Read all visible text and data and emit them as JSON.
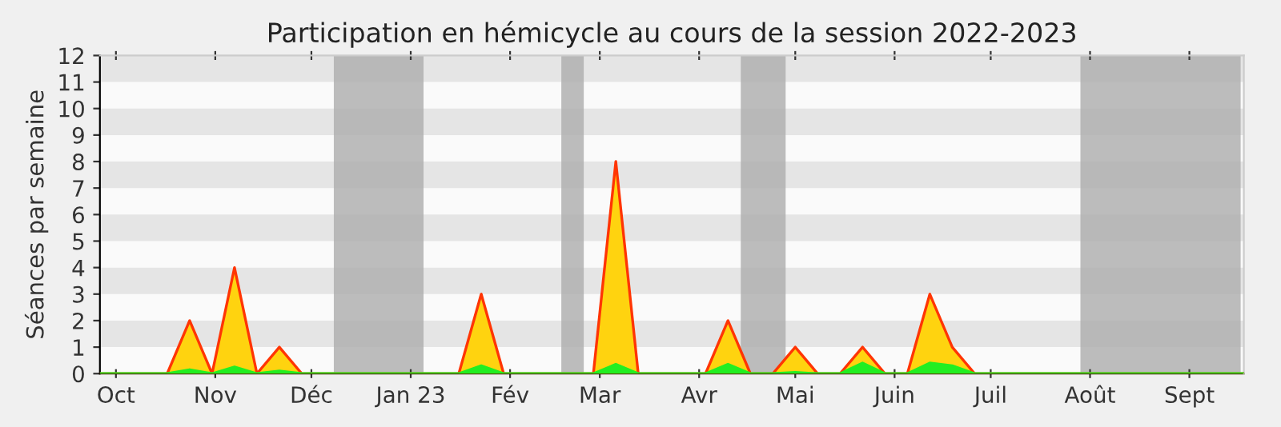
{
  "chart_data": {
    "type": "area",
    "title": "Participation en hémicycle au cours de la session 2022-2023",
    "ylabel": "Séances par semaine",
    "x": [
      "2022-09-26",
      "2022-10-03",
      "2022-10-10",
      "2022-10-17",
      "2022-10-24",
      "2022-10-31",
      "2022-11-07",
      "2022-11-14",
      "2022-11-21",
      "2022-11-28",
      "2022-12-05",
      "2022-12-12",
      "2022-12-19",
      "2022-12-26",
      "2023-01-02",
      "2023-01-09",
      "2023-01-16",
      "2023-01-23",
      "2023-01-30",
      "2023-02-06",
      "2023-02-13",
      "2023-02-20",
      "2023-02-27",
      "2023-03-06",
      "2023-03-13",
      "2023-03-20",
      "2023-03-27",
      "2023-04-03",
      "2023-04-10",
      "2023-04-17",
      "2023-04-24",
      "2023-05-01",
      "2023-05-08",
      "2023-05-15",
      "2023-05-22",
      "2023-05-29",
      "2023-06-05",
      "2023-06-12",
      "2023-06-19",
      "2023-06-26",
      "2023-07-03",
      "2023-07-10",
      "2023-07-17",
      "2023-07-24",
      "2023-07-31",
      "2023-08-07",
      "2023-08-14",
      "2023-08-21",
      "2023-08-28",
      "2023-09-04",
      "2023-09-11",
      "2023-09-18"
    ],
    "series": [
      {
        "color": "#ffd30f",
        "values": [
          0,
          0,
          0,
          0,
          2,
          0,
          4,
          0,
          1,
          0,
          0,
          0,
          0,
          0,
          0,
          0,
          0,
          3,
          0,
          0,
          0,
          0,
          0,
          8,
          0,
          0,
          0,
          0,
          2,
          0,
          0,
          1,
          0,
          0,
          1,
          0,
          0,
          3,
          1,
          0,
          0,
          0,
          0,
          0,
          0,
          0,
          0,
          0,
          0,
          0,
          0,
          0
        ]
      },
      {
        "color": "#22ee22",
        "values": [
          0,
          0,
          0,
          0,
          0.15,
          0,
          0.25,
          0,
          0.1,
          0,
          0,
          0,
          0,
          0,
          0,
          0,
          0,
          0.3,
          0,
          0,
          0,
          0,
          0,
          0.35,
          0,
          0,
          0,
          0,
          0.35,
          0,
          0,
          0.05,
          0,
          0,
          0.4,
          0,
          0,
          0.4,
          0.3,
          0,
          0,
          0,
          0,
          0,
          0,
          0,
          0,
          0,
          0,
          0,
          0,
          0
        ]
      }
    ],
    "bands": [
      {
        "axis": "x",
        "from": "2022-12-08",
        "to": "2023-01-05",
        "color": "#b0b0b0"
      },
      {
        "axis": "x",
        "from": "2023-02-17",
        "to": "2023-02-24",
        "color": "#b0b0b0"
      },
      {
        "axis": "x",
        "from": "2023-04-14",
        "to": "2023-04-28",
        "color": "#b0b0b0"
      },
      {
        "axis": "x",
        "from": "2023-07-29",
        "to": "2023-09-17",
        "color": "#b0b0b0"
      }
    ],
    "xlim": [
      "2022-09-26",
      "2023-09-18"
    ],
    "xticks": [
      {
        "value": "2022-10-01",
        "label": "Oct"
      },
      {
        "value": "2022-11-01",
        "label": "Nov"
      },
      {
        "value": "2022-12-01",
        "label": "Déc"
      },
      {
        "value": "2023-01-01",
        "label": "Jan 23"
      },
      {
        "value": "2023-02-01",
        "label": "Fév"
      },
      {
        "value": "2023-03-01",
        "label": "Mar"
      },
      {
        "value": "2023-04-01",
        "label": "Avr"
      },
      {
        "value": "2023-05-01",
        "label": "Mai"
      },
      {
        "value": "2023-06-01",
        "label": "Juin"
      },
      {
        "value": "2023-07-01",
        "label": "Juil"
      },
      {
        "value": "2023-08-01",
        "label": "Août"
      },
      {
        "value": "2023-09-01",
        "label": "Sept"
      }
    ],
    "ylim": [
      0,
      12
    ],
    "yticks": [
      0,
      1,
      2,
      3,
      4,
      5,
      6,
      7,
      8,
      9,
      10,
      11,
      12
    ]
  }
}
